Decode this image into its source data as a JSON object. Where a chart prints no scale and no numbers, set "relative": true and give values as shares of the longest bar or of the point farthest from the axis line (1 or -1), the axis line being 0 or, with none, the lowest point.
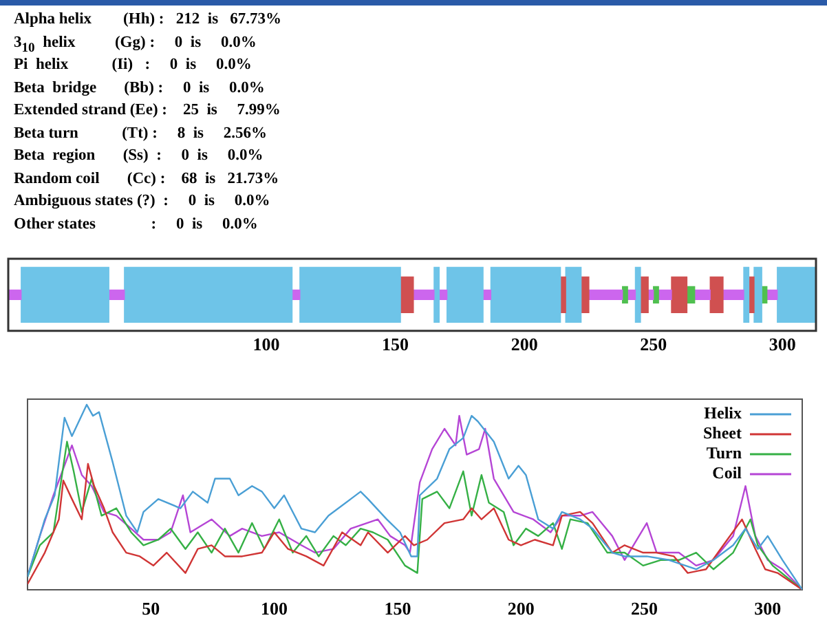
{
  "chart_data": [
    {
      "type": "other",
      "annotations": [
        "Alpha helix        (Hh) :   212  is   67.73%",
        "3$_{10}$  helix          (Gg) :     0  is     0.0%",
        "Pi  helix           (Ii)   :     0  is     0.0%",
        "Beta  bridge       (Bb) :     0  is     0.0%",
        "Extended strand (Ee) :    25  is     7.99%",
        "Beta turn           (Tt) :     8  is     2.56%",
        "Beta  region       (Ss)  :     0  is     0.0%",
        "Random coil       (Cc) :    68  is   21.73%",
        "Ambiguous states (?)  :     0  is     0.0%",
        "Other states              :     0  is     0.0%"
      ]
    },
    {
      "type": "bar",
      "orientation": "horizontal",
      "stacked": true,
      "categories": [
        null
      ],
      "xlim": [
        0,
        313
      ],
      "xticks": [
        100,
        150,
        200,
        250,
        300
      ],
      "tick_labels": "x",
      "grid": false,
      "series": [
        {
          "color": "#cc66ee",
          "values": [
            5
          ]
        },
        {
          "color": "#6ec4e8",
          "values": [
            34
          ]
        },
        {
          "color": "#cc66ee",
          "values": [
            6
          ]
        },
        {
          "color": "#6ec4e8",
          "values": [
            65
          ]
        },
        {
          "color": "#cc66ee",
          "values": [
            3
          ]
        },
        {
          "color": "#6ec4e8",
          "values": [
            39
          ]
        },
        {
          "color": "#d05050",
          "values": [
            5
          ]
        },
        {
          "color": "#cc66ee",
          "values": [
            8
          ]
        },
        {
          "color": "#6ec4e8",
          "values": [
            2
          ]
        },
        {
          "color": "#cc66ee",
          "values": [
            3
          ]
        },
        {
          "color": "#6ec4e8",
          "values": [
            14
          ]
        },
        {
          "color": "#cc66ee",
          "values": [
            3
          ]
        },
        {
          "color": "#6ec4e8",
          "values": [
            27
          ]
        },
        {
          "color": "#d05050",
          "values": [
            2
          ]
        },
        {
          "color": "#6ec4e8",
          "values": [
            6
          ]
        },
        {
          "color": "#d05050",
          "values": [
            3
          ]
        },
        {
          "color": "#cc66ee",
          "values": [
            13
          ]
        },
        {
          "color": "#50c050",
          "values": [
            2
          ]
        },
        {
          "color": "#cc66ee",
          "values": [
            3
          ]
        },
        {
          "color": "#6ec4e8",
          "values": [
            2
          ]
        },
        {
          "color": "#d05050",
          "values": [
            3
          ]
        },
        {
          "color": "#cc66ee",
          "values": [
            2
          ]
        },
        {
          "color": "#50c050",
          "values": [
            2
          ]
        },
        {
          "color": "#cc66ee",
          "values": [
            5
          ]
        },
        {
          "color": "#d05050",
          "values": [
            6
          ]
        },
        {
          "color": "#50c050",
          "values": [
            3
          ]
        },
        {
          "color": "#cc66ee",
          "values": [
            6
          ]
        },
        {
          "color": "#d05050",
          "values": [
            5
          ]
        },
        {
          "color": "#cc66ee",
          "values": [
            8
          ]
        },
        {
          "color": "#6ec4e8",
          "values": [
            2
          ]
        },
        {
          "color": "#d05050",
          "values": [
            2
          ]
        },
        {
          "color": "#6ec4e8",
          "values": [
            3
          ]
        },
        {
          "color": "#50c050",
          "values": [
            2
          ]
        },
        {
          "color": "#cc66ee",
          "values": [
            4
          ]
        },
        {
          "color": "#6ec4e8",
          "values": [
            15
          ]
        }
      ]
    },
    {
      "type": "line",
      "relative": true,
      "xlim": [
        0,
        314
      ],
      "xticks": [
        50,
        100,
        150,
        200,
        250,
        300
      ],
      "tick_labels": "x",
      "grid": false,
      "legend": "top right",
      "series": [
        {
          "name": "Helix",
          "color": "#4a9fd5",
          "x": [
            0,
            7,
            11,
            15,
            18,
            24,
            26.5,
            29,
            34.5,
            40,
            44.5,
            47,
            53,
            62,
            67,
            73,
            76,
            82,
            85.5,
            91,
            95,
            100,
            104,
            111,
            116.5,
            122,
            131,
            135,
            138,
            145.6,
            151,
            155.5,
            158,
            159,
            166,
            171,
            176.6,
            180,
            182.5,
            189,
            195,
            199,
            202,
            207,
            213,
            216.6,
            224,
            229,
            237,
            242,
            251,
            260,
            271,
            278,
            286,
            291,
            296,
            300,
            306,
            314
          ],
          "values": [
            0.07,
            0.38,
            0.51,
            0.93,
            0.83,
            1.0,
            0.94,
            0.96,
            0.69,
            0.4,
            0.31,
            0.42,
            0.49,
            0.44,
            0.53,
            0.47,
            0.6,
            0.6,
            0.51,
            0.56,
            0.53,
            0.44,
            0.51,
            0.33,
            0.31,
            0.4,
            0.49,
            0.53,
            0.49,
            0.38,
            0.31,
            0.18,
            0.18,
            0.51,
            0.6,
            0.76,
            0.82,
            0.94,
            0.91,
            0.8,
            0.6,
            0.67,
            0.62,
            0.38,
            0.33,
            0.42,
            0.38,
            0.33,
            0.2,
            0.18,
            0.18,
            0.16,
            0.11,
            0.16,
            0.24,
            0.33,
            0.22,
            0.29,
            0.16,
            0
          ]
        },
        {
          "name": "Sheet",
          "color": "#d03535",
          "x": [
            0,
            7,
            12.7,
            14.5,
            18,
            22,
            24.5,
            27,
            31,
            34.5,
            40,
            45.5,
            51,
            56.4,
            64,
            69,
            74.6,
            80,
            87,
            95,
            100,
            105.6,
            113,
            120,
            127.5,
            135,
            138,
            146,
            153,
            156.6,
            162,
            169,
            176.6,
            180,
            184,
            189,
            195,
            200,
            205.6,
            213,
            216.6,
            224,
            229,
            237,
            242,
            249.5,
            255,
            262,
            267.6,
            275,
            282,
            289.6,
            295,
            299,
            304,
            314
          ],
          "values": [
            0.03,
            0.2,
            0.38,
            0.59,
            0.49,
            0.38,
            0.68,
            0.56,
            0.44,
            0.31,
            0.2,
            0.18,
            0.13,
            0.2,
            0.09,
            0.22,
            0.24,
            0.18,
            0.18,
            0.2,
            0.31,
            0.22,
            0.18,
            0.13,
            0.31,
            0.24,
            0.31,
            0.2,
            0.29,
            0.24,
            0.27,
            0.36,
            0.38,
            0.44,
            0.38,
            0.44,
            0.27,
            0.24,
            0.27,
            0.24,
            0.4,
            0.42,
            0.36,
            0.2,
            0.24,
            0.2,
            0.2,
            0.18,
            0.09,
            0.11,
            0.24,
            0.38,
            0.22,
            0.11,
            0.09,
            0
          ]
        },
        {
          "name": "Turn",
          "color": "#35b045",
          "x": [
            0,
            5,
            10.5,
            16,
            18.7,
            22,
            26,
            30,
            36,
            42,
            47,
            53,
            58,
            64,
            69,
            74.6,
            80,
            85.5,
            91,
            96,
            102,
            107.5,
            113,
            118,
            124,
            129,
            135,
            140,
            146,
            153,
            158,
            160,
            166,
            171,
            176.6,
            180,
            184,
            187,
            193,
            197,
            202,
            207,
            213,
            216.6,
            220,
            227,
            235,
            242,
            249.5,
            256.6,
            264,
            271,
            278,
            286,
            293,
            296,
            302,
            314
          ],
          "values": [
            0.07,
            0.24,
            0.31,
            0.8,
            0.64,
            0.42,
            0.6,
            0.4,
            0.44,
            0.31,
            0.24,
            0.27,
            0.33,
            0.22,
            0.31,
            0.2,
            0.33,
            0.2,
            0.36,
            0.22,
            0.38,
            0.2,
            0.29,
            0.18,
            0.29,
            0.24,
            0.33,
            0.31,
            0.27,
            0.13,
            0.09,
            0.49,
            0.53,
            0.44,
            0.64,
            0.4,
            0.62,
            0.47,
            0.42,
            0.24,
            0.33,
            0.29,
            0.36,
            0.22,
            0.38,
            0.36,
            0.2,
            0.2,
            0.13,
            0.16,
            0.16,
            0.2,
            0.11,
            0.2,
            0.38,
            0.24,
            0.13,
            0
          ]
        },
        {
          "name": "Coil",
          "color": "#b545d5",
          "x": [
            0,
            5,
            10.5,
            18,
            22,
            26,
            31,
            36,
            42,
            47,
            53,
            58,
            63,
            66,
            74.6,
            82,
            87,
            95,
            102,
            111,
            116.5,
            124,
            131,
            142,
            147,
            153,
            155,
            159,
            164,
            169,
            173.5,
            175,
            178,
            183,
            185.5,
            189,
            197,
            205,
            212,
            216.6,
            224,
            229,
            237,
            242,
            251,
            255,
            264,
            271,
            278,
            286,
            291,
            295,
            300,
            306,
            314
          ],
          "values": [
            0.07,
            0.29,
            0.51,
            0.78,
            0.62,
            0.56,
            0.42,
            0.4,
            0.33,
            0.27,
            0.27,
            0.31,
            0.51,
            0.31,
            0.38,
            0.29,
            0.33,
            0.29,
            0.31,
            0.24,
            0.2,
            0.22,
            0.33,
            0.38,
            0.29,
            0.24,
            0.2,
            0.58,
            0.76,
            0.87,
            0.78,
            0.94,
            0.73,
            0.76,
            0.87,
            0.6,
            0.42,
            0.38,
            0.31,
            0.4,
            0.4,
            0.42,
            0.29,
            0.16,
            0.36,
            0.2,
            0.2,
            0.13,
            0.16,
            0.29,
            0.56,
            0.29,
            0.16,
            0.11,
            0
          ]
        }
      ]
    }
  ]
}
